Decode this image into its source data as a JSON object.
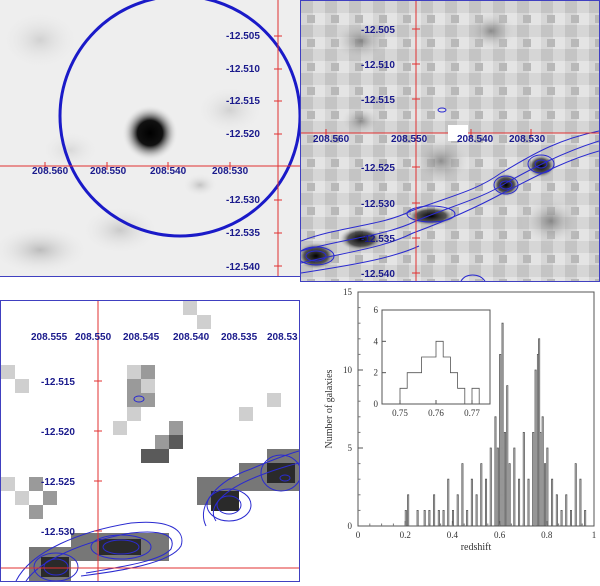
{
  "panels": {
    "top_left": {
      "ra_labels": [
        "208.560",
        "208.550",
        "208.540",
        "208.530"
      ],
      "dec_labels": [
        "-12.505",
        "-12.510",
        "-12.515",
        "-12.520",
        "-12.530",
        "-12.535",
        "-12.540"
      ]
    },
    "top_right": {
      "ra_labels": [
        "208.560",
        "208.550",
        "208.540",
        "208.530"
      ],
      "dec_labels": [
        "-12.505",
        "-12.510",
        "-12.515",
        "-12.525",
        "-12.530",
        "-12.535",
        "-12.540"
      ]
    },
    "bottom_left": {
      "ra_labels": [
        "208.555",
        "208.550",
        "208.545",
        "208.540",
        "208.535",
        "208.53"
      ],
      "dec_labels": [
        "-12.515",
        "-12.520",
        "-12.525",
        "-12.530"
      ]
    }
  },
  "chart_data": {
    "type": "bar",
    "xlabel": "redshift",
    "ylabel": "Number of galaxies",
    "xlim": [
      0,
      1
    ],
    "ylim": [
      0,
      15
    ],
    "x_ticks": [
      "0",
      "0.2",
      "0.4",
      "0.6",
      "0.8",
      "1"
    ],
    "y_ticks": [
      "0",
      "5",
      "10",
      "15"
    ],
    "bin_width": 0.005,
    "bins": [
      [
        0.2,
        1
      ],
      [
        0.21,
        2
      ],
      [
        0.25,
        1
      ],
      [
        0.28,
        1
      ],
      [
        0.3,
        1
      ],
      [
        0.32,
        2
      ],
      [
        0.34,
        1
      ],
      [
        0.36,
        1
      ],
      [
        0.38,
        3
      ],
      [
        0.4,
        1
      ],
      [
        0.42,
        2
      ],
      [
        0.44,
        4
      ],
      [
        0.46,
        1
      ],
      [
        0.48,
        3
      ],
      [
        0.5,
        2
      ],
      [
        0.52,
        4
      ],
      [
        0.54,
        3
      ],
      [
        0.56,
        5
      ],
      [
        0.58,
        7
      ],
      [
        0.59,
        5
      ],
      [
        0.6,
        11
      ],
      [
        0.61,
        13
      ],
      [
        0.62,
        6
      ],
      [
        0.63,
        9
      ],
      [
        0.64,
        4
      ],
      [
        0.66,
        5
      ],
      [
        0.68,
        3
      ],
      [
        0.7,
        6
      ],
      [
        0.72,
        3
      ],
      [
        0.74,
        6
      ],
      [
        0.75,
        10
      ],
      [
        0.76,
        11
      ],
      [
        0.765,
        12
      ],
      [
        0.77,
        6
      ],
      [
        0.78,
        7
      ],
      [
        0.79,
        4
      ],
      [
        0.8,
        5
      ],
      [
        0.82,
        3
      ],
      [
        0.84,
        2
      ],
      [
        0.86,
        1
      ],
      [
        0.88,
        2
      ],
      [
        0.9,
        1
      ],
      [
        0.92,
        4
      ],
      [
        0.94,
        3
      ],
      [
        0.96,
        1
      ]
    ],
    "inset": {
      "xlim": [
        0.745,
        0.775
      ],
      "ylim": [
        0,
        6
      ],
      "x_ticks": [
        "0.75",
        "0.76",
        "0.77"
      ],
      "y_ticks": [
        "0",
        "2",
        "4",
        "6"
      ],
      "bins": [
        [
          0.75,
          1
        ],
        [
          0.752,
          2
        ],
        [
          0.754,
          2
        ],
        [
          0.756,
          3
        ],
        [
          0.758,
          3
        ],
        [
          0.76,
          4
        ],
        [
          0.762,
          3
        ],
        [
          0.764,
          2
        ],
        [
          0.766,
          1
        ],
        [
          0.768,
          0
        ],
        [
          0.77,
          1
        ]
      ]
    }
  }
}
